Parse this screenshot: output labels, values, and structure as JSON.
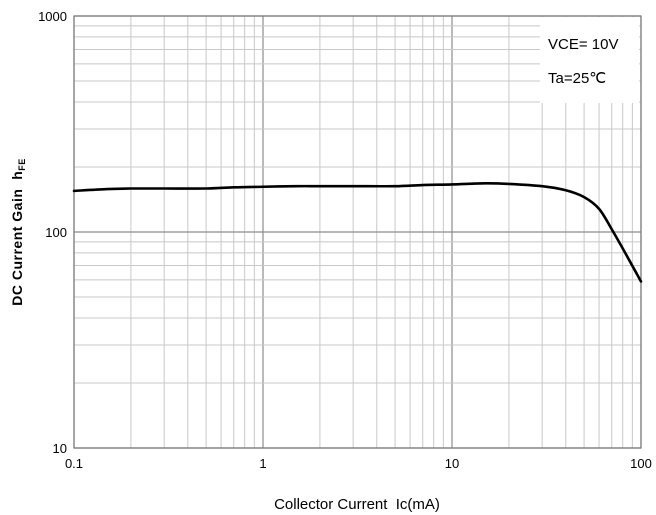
{
  "chart_data": {
    "type": "line",
    "xlabel": "Collector Current  Ic(mA)",
    "ylabel_main": "DC Current Gain  h",
    "ylabel_sub": "FE",
    "xscale": "log",
    "yscale": "log",
    "xlim": [
      0.1,
      100
    ],
    "ylim": [
      10,
      1000
    ],
    "grid": true,
    "xtick_labels": [
      "0.1",
      "1",
      "10",
      "100"
    ],
    "ytick_labels": [
      "10",
      "100",
      "1000"
    ],
    "conditions": [
      "VCE= 10V",
      "Ta=25℃"
    ],
    "legend_position": "top-right",
    "line_color": "#000000",
    "series": [
      {
        "x": [
          0.1,
          0.15,
          0.2,
          0.3,
          0.5,
          0.7,
          1,
          1.5,
          2,
          3,
          5,
          7,
          10,
          15,
          20,
          30,
          40,
          50,
          60,
          70,
          80,
          100
        ],
        "y": [
          155,
          158,
          159,
          159,
          159,
          161,
          162,
          163,
          163,
          163,
          163,
          165,
          166,
          168,
          167,
          163,
          156,
          145,
          128,
          103,
          84,
          59
        ]
      }
    ]
  }
}
